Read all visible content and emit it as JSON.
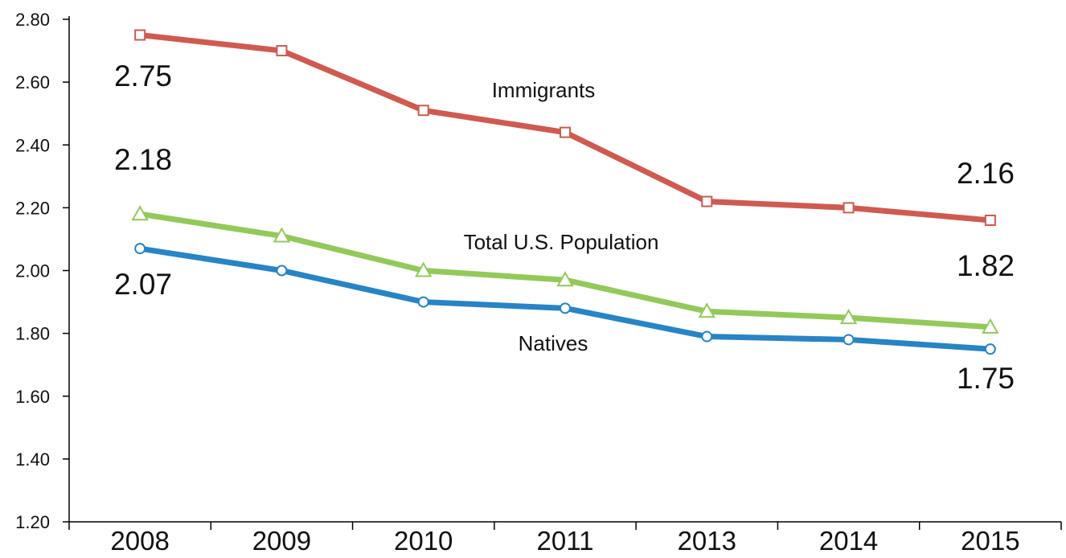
{
  "chart_data": {
    "type": "line",
    "categories": [
      "2008",
      "2009",
      "2010",
      "2011",
      "2013",
      "2014",
      "2015"
    ],
    "ylim": [
      1.2,
      2.8
    ],
    "yticks": [
      "1.20",
      "1.40",
      "1.60",
      "1.80",
      "2.00",
      "2.20",
      "2.40",
      "2.60",
      "2.80"
    ],
    "grid": false,
    "legend": "none",
    "series": [
      {
        "name": "Immigrants",
        "color": "#d05a50",
        "marker": "square",
        "values": [
          2.75,
          2.7,
          2.51,
          2.44,
          2.22,
          2.2,
          2.16
        ],
        "labels": [
          "2.75",
          "",
          "",
          "",
          "",
          "",
          "2.16"
        ]
      },
      {
        "name": "Total U.S. Population",
        "color": "#93c95a",
        "marker": "triangle",
        "values": [
          2.18,
          2.11,
          2.0,
          1.97,
          1.87,
          1.85,
          1.82
        ],
        "labels": [
          "2.18",
          "",
          "",
          "",
          "",
          "",
          "1.82"
        ]
      },
      {
        "name": "Natives",
        "color": "#2784c6",
        "marker": "circle",
        "values": [
          2.07,
          2.0,
          1.9,
          1.88,
          1.79,
          1.78,
          1.75
        ],
        "labels": [
          "2.07",
          "",
          "",
          "",
          "",
          "",
          "1.75"
        ]
      }
    ]
  }
}
